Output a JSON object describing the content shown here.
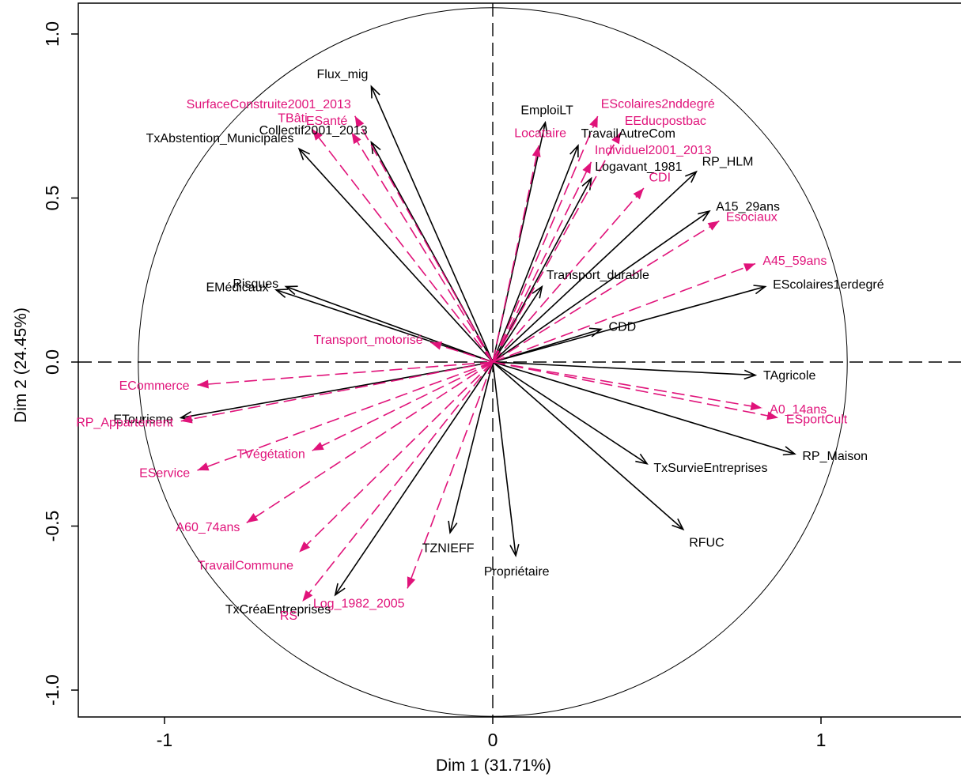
{
  "chart_data": {
    "type": "scatter",
    "xlabel": "Dim 1 (31.71%)",
    "ylabel": "Dim 2 (24.45%)",
    "xlim": [
      -1.27,
      1.45
    ],
    "ylim": [
      -1.1,
      1.1
    ],
    "x_ticks": [
      {
        "value": -1,
        "label": "-1"
      },
      {
        "value": 0,
        "label": "0"
      },
      {
        "value": 1,
        "label": "1"
      }
    ],
    "y_ticks": [
      {
        "value": -1,
        "label": "-1.0"
      },
      {
        "value": -0.5,
        "label": "-0.5"
      },
      {
        "value": 0,
        "label": "0.0"
      },
      {
        "value": 0.5,
        "label": "0.5"
      },
      {
        "value": 1,
        "label": "1.0"
      }
    ],
    "circle_radius": 1.08,
    "colors": {
      "active": "#000000",
      "supplementary": "#e0137a"
    },
    "arrows": [
      {
        "label": "Flux_mig",
        "x": -0.37,
        "y": 0.84,
        "group": "active"
      },
      {
        "label": "Collectif2001_2013",
        "x": -0.37,
        "y": 0.67,
        "group": "active"
      },
      {
        "label": "TxAbstention_Municipales",
        "x": -0.59,
        "y": 0.65,
        "group": "active"
      },
      {
        "label": "EmploiLT",
        "x": 0.16,
        "y": 0.73,
        "group": "active"
      },
      {
        "label": "TravailAutreCom",
        "x": 0.26,
        "y": 0.66,
        "group": "active"
      },
      {
        "label": "RP_HLM",
        "x": 0.62,
        "y": 0.58,
        "group": "active"
      },
      {
        "label": "Logavant_1981",
        "x": 0.3,
        "y": 0.56,
        "group": "active"
      },
      {
        "label": "A15_29ans",
        "x": 0.66,
        "y": 0.46,
        "group": "active"
      },
      {
        "label": "Risques",
        "x": -0.63,
        "y": 0.23,
        "group": "active"
      },
      {
        "label": "EMédicaux",
        "x": -0.66,
        "y": 0.22,
        "group": "active"
      },
      {
        "label": "Transport_durable",
        "x": 0.15,
        "y": 0.23,
        "group": "active"
      },
      {
        "label": "EScolaires1erdegré",
        "x": 0.83,
        "y": 0.23,
        "group": "active"
      },
      {
        "label": "CDD",
        "x": 0.33,
        "y": 0.1,
        "group": "active"
      },
      {
        "label": "TAgricole",
        "x": 0.8,
        "y": -0.04,
        "group": "active"
      },
      {
        "label": "ETourisme",
        "x": -0.95,
        "y": -0.17,
        "group": "active"
      },
      {
        "label": "RP_Maison",
        "x": 0.92,
        "y": -0.28,
        "group": "active"
      },
      {
        "label": "TxSurvieEntreprises",
        "x": 0.47,
        "y": -0.31,
        "group": "active"
      },
      {
        "label": "RFUC",
        "x": 0.58,
        "y": -0.51,
        "group": "active"
      },
      {
        "label": "TZNIEFF",
        "x": -0.13,
        "y": -0.52,
        "group": "active"
      },
      {
        "label": "Propriétaire",
        "x": 0.07,
        "y": -0.59,
        "group": "active"
      },
      {
        "label": "TxCréaEntreprises",
        "x": -0.48,
        "y": -0.71,
        "group": "active"
      },
      {
        "label": "SurfaceConstruite2001_2013",
        "x": -0.42,
        "y": 0.75,
        "group": "supplementary"
      },
      {
        "label": "ESanté",
        "x": -0.43,
        "y": 0.7,
        "group": "supplementary"
      },
      {
        "label": "TBâti",
        "x": -0.55,
        "y": 0.71,
        "group": "supplementary"
      },
      {
        "label": "EScolaires2nddegré",
        "x": 0.32,
        "y": 0.75,
        "group": "supplementary"
      },
      {
        "label": "EEducpostbac",
        "x": 0.39,
        "y": 0.7,
        "group": "supplementary"
      },
      {
        "label": "Locataire",
        "x": 0.14,
        "y": 0.66,
        "group": "supplementary"
      },
      {
        "label": "Individuel2001_2013",
        "x": 0.3,
        "y": 0.61,
        "group": "supplementary"
      },
      {
        "label": "CDI",
        "x": 0.46,
        "y": 0.53,
        "group": "supplementary"
      },
      {
        "label": "Esociaux",
        "x": 0.69,
        "y": 0.43,
        "group": "supplementary"
      },
      {
        "label": "A45_59ans",
        "x": 0.8,
        "y": 0.3,
        "group": "supplementary"
      },
      {
        "label": "Transport_motorisé",
        "x": -0.19,
        "y": 0.06,
        "group": "supplementary"
      },
      {
        "label": "ECommerce",
        "x": -0.9,
        "y": -0.07,
        "group": "supplementary"
      },
      {
        "label": "RP_Appartement",
        "x": -0.95,
        "y": -0.18,
        "group": "supplementary"
      },
      {
        "label": "EService",
        "x": -0.9,
        "y": -0.33,
        "group": "supplementary"
      },
      {
        "label": "TVégétation",
        "x": -0.55,
        "y": -0.27,
        "group": "supplementary"
      },
      {
        "label": "A60_74ans",
        "x": -0.75,
        "y": -0.49,
        "group": "supplementary"
      },
      {
        "label": "TravailCommune",
        "x": -0.59,
        "y": -0.58,
        "group": "supplementary"
      },
      {
        "label": "RS",
        "x": -0.58,
        "y": -0.73,
        "group": "supplementary"
      },
      {
        "label": "Log_1982_2005",
        "x": -0.26,
        "y": -0.69,
        "group": "supplementary"
      },
      {
        "label": "A0_14ans",
        "x": 0.82,
        "y": -0.14,
        "group": "supplementary"
      },
      {
        "label": "ESportCult",
        "x": 0.87,
        "y": -0.17,
        "group": "supplementary"
      }
    ]
  }
}
